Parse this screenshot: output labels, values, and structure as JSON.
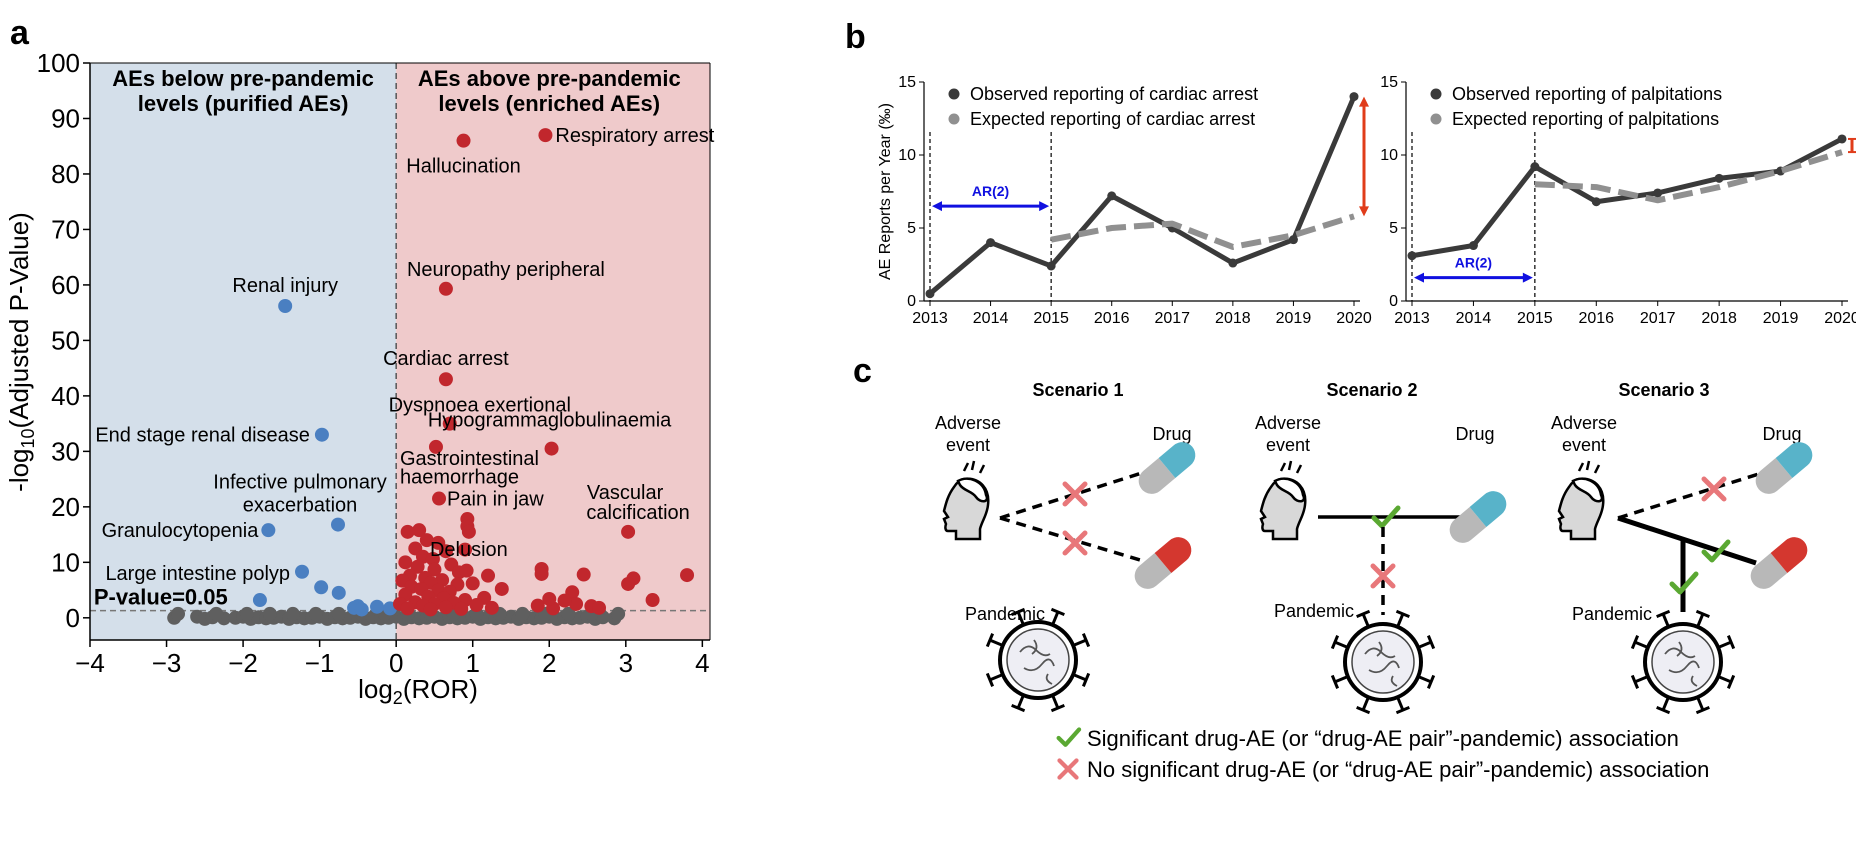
{
  "panels": {
    "a": "a",
    "b": "b",
    "c": "c"
  },
  "chart_data": [
    {
      "type": "scatter",
      "panel": "a",
      "xlabel_base": "log",
      "xlabel_sub": "2",
      "xlabel_rest": "(ROR)",
      "ylabel_pre": "-log",
      "ylabel_sub": "10",
      "ylabel_rest": "(Adjusted P-Value)",
      "xlim": [
        -4,
        4.1
      ],
      "ylim": [
        -4,
        100
      ],
      "xticks": [
        -4,
        -3,
        -2,
        -1,
        0,
        1,
        2,
        3,
        4
      ],
      "xtick_labels": [
        "−4",
        "−3",
        "−2",
        "−1",
        "0",
        "1",
        "2",
        "3",
        "4"
      ],
      "yticks": [
        0,
        10,
        20,
        30,
        40,
        50,
        60,
        70,
        80,
        90,
        100
      ],
      "ytick_labels": [
        "0",
        "10",
        "20",
        "30",
        "40",
        "50",
        "60",
        "70",
        "80",
        "90",
        "100"
      ],
      "region_left_title": [
        "AEs below pre-pandemic",
        "levels (purified AEs)"
      ],
      "region_right_title": [
        "AEs above pre-pandemic",
        "levels (enriched AEs)"
      ],
      "threshold": {
        "y": 1.3,
        "label": "P-value=0.05"
      },
      "colors": {
        "purified": "#4a7fc1",
        "enriched": "#c1272d",
        "insignificant": "#5f5f5f",
        "left_bg": "#d4dfea",
        "right_bg": "#efcacb"
      },
      "labeled_points": [
        {
          "x": 1.95,
          "y": 87,
          "group": "enriched",
          "label": "Respiratory arrest"
        },
        {
          "x": 0.88,
          "y": 86,
          "group": "enriched",
          "label": "Hallucination"
        },
        {
          "x": 0.65,
          "y": 59.3,
          "group": "enriched",
          "label": "Neuropathy peripheral"
        },
        {
          "x": 0.65,
          "y": 43,
          "group": "enriched",
          "label": "Cardiac arrest"
        },
        {
          "x": 0.7,
          "y": 35,
          "group": "enriched",
          "label": "Dyspnoea exertional"
        },
        {
          "x": 2.03,
          "y": 30.5,
          "group": "enriched",
          "label": "Hypogrammaglobulinaemia"
        },
        {
          "x": 0.56,
          "y": 21.5,
          "group": "enriched",
          "label": "Pain in jaw"
        },
        {
          "x": 0.95,
          "y": 15.5,
          "group": "enriched",
          "label": "Delusion"
        },
        {
          "x": 3.03,
          "y": 15.5,
          "group": "enriched",
          "label": "Vascular calcification"
        },
        {
          "x": -1.45,
          "y": 56.2,
          "group": "purified",
          "label": "Renal injury"
        },
        {
          "x": -0.97,
          "y": 33,
          "group": "purified",
          "label": "End stage renal disease"
        },
        {
          "x": -0.76,
          "y": 16.8,
          "group": "purified",
          "label": "Infective pulmonary exacerbation"
        },
        {
          "x": -1.67,
          "y": 15.8,
          "group": "purified",
          "label": "Granulocytopenia"
        },
        {
          "x": -1.23,
          "y": 8.3,
          "group": "purified",
          "label": "Large intestine polyp"
        }
      ],
      "extra_point_labels": [
        {
          "text": "Gastrointestinal",
          "x": 0.05,
          "y": 27.5
        },
        {
          "text": "haemorrhage",
          "x": 0.05,
          "y": 24.2
        }
      ],
      "enriched_points": [
        {
          "x": 0.52,
          "y": 30.8
        },
        {
          "x": 0.93,
          "y": 17.8
        },
        {
          "x": 0.93,
          "y": 16.5
        },
        {
          "x": 0.3,
          "y": 15.8
        },
        {
          "x": 0.15,
          "y": 15.5
        },
        {
          "x": 0.4,
          "y": 14
        },
        {
          "x": 0.55,
          "y": 13.5
        },
        {
          "x": 0.25,
          "y": 12.5
        },
        {
          "x": 0.65,
          "y": 12
        },
        {
          "x": 0.9,
          "y": 12.3
        },
        {
          "x": 0.35,
          "y": 11
        },
        {
          "x": 0.48,
          "y": 10.6
        },
        {
          "x": 0.12,
          "y": 10
        },
        {
          "x": 0.72,
          "y": 9.6
        },
        {
          "x": 0.28,
          "y": 9.2
        },
        {
          "x": 0.5,
          "y": 8.7
        },
        {
          "x": 0.82,
          "y": 8.2
        },
        {
          "x": 0.92,
          "y": 8.5
        },
        {
          "x": 1.2,
          "y": 7.6
        },
        {
          "x": 0.18,
          "y": 7.6
        },
        {
          "x": 0.38,
          "y": 7.2
        },
        {
          "x": 0.6,
          "y": 6.8
        },
        {
          "x": 0.08,
          "y": 6.7
        },
        {
          "x": 0.45,
          "y": 6.3
        },
        {
          "x": 0.8,
          "y": 6
        },
        {
          "x": 1.0,
          "y": 6.2
        },
        {
          "x": 0.2,
          "y": 5.6
        },
        {
          "x": 0.33,
          "y": 5.2
        },
        {
          "x": 0.55,
          "y": 4.9
        },
        {
          "x": 0.7,
          "y": 4.7
        },
        {
          "x": 1.38,
          "y": 5.2
        },
        {
          "x": 0.12,
          "y": 4.2
        },
        {
          "x": 0.42,
          "y": 3.8
        },
        {
          "x": 0.62,
          "y": 3.5
        },
        {
          "x": 0.9,
          "y": 3.2
        },
        {
          "x": 1.15,
          "y": 3.6
        },
        {
          "x": 0.25,
          "y": 2.8
        },
        {
          "x": 0.5,
          "y": 2.5
        },
        {
          "x": 0.75,
          "y": 2.7
        },
        {
          "x": 1.05,
          "y": 2.3
        },
        {
          "x": 0.05,
          "y": 2.5
        },
        {
          "x": 0.35,
          "y": 2.2
        },
        {
          "x": 0.65,
          "y": 1.9
        },
        {
          "x": 0.15,
          "y": 1.7
        },
        {
          "x": 0.45,
          "y": 1.5
        },
        {
          "x": 0.85,
          "y": 1.6
        },
        {
          "x": 1.25,
          "y": 1.8
        },
        {
          "x": 1.9,
          "y": 8.8
        },
        {
          "x": 1.9,
          "y": 7.9
        },
        {
          "x": 2.45,
          "y": 7.8
        },
        {
          "x": 2.3,
          "y": 4.6
        },
        {
          "x": 2.35,
          "y": 2.5
        },
        {
          "x": 2.55,
          "y": 2.1
        },
        {
          "x": 1.85,
          "y": 2.2
        },
        {
          "x": 2.05,
          "y": 1.7
        },
        {
          "x": 2.2,
          "y": 3.1
        },
        {
          "x": 3.1,
          "y": 7.1
        },
        {
          "x": 3.03,
          "y": 6.1
        },
        {
          "x": 3.35,
          "y": 3.2
        },
        {
          "x": 2.65,
          "y": 1.8
        },
        {
          "x": 3.8,
          "y": 7.7
        },
        {
          "x": 2.0,
          "y": 3.4
        }
      ],
      "purified_points": [
        {
          "x": -1.78,
          "y": 3.2
        },
        {
          "x": -0.98,
          "y": 5.5
        },
        {
          "x": -0.75,
          "y": 4.5
        },
        {
          "x": -0.5,
          "y": 2.1
        },
        {
          "x": -0.55,
          "y": 1.8
        },
        {
          "x": -0.45,
          "y": 1.5
        },
        {
          "x": -0.25,
          "y": 2.0
        },
        {
          "x": -0.08,
          "y": 1.7
        }
      ],
      "insignificant_points_x": [
        -2.9,
        -2.6,
        -2.5,
        -2.4,
        -2.25,
        -2.1,
        -2.0,
        -1.9,
        -1.8,
        -1.7,
        -1.6,
        -1.5,
        -1.4,
        -1.3,
        -1.2,
        -1.1,
        -1.0,
        -0.9,
        -0.8,
        -0.7,
        -0.6,
        -0.5,
        -0.4,
        -0.3,
        -0.2,
        -0.1,
        0.0,
        0.1,
        0.2,
        0.3,
        0.4,
        0.5,
        0.6,
        0.7,
        0.8,
        0.9,
        1.0,
        1.1,
        1.2,
        1.3,
        1.4,
        1.5,
        1.6,
        1.7,
        1.8,
        1.9,
        2.0,
        2.1,
        2.2,
        2.3,
        2.4,
        2.5,
        2.6,
        2.7,
        2.85
      ]
    },
    {
      "type": "line",
      "panel": "b-left",
      "ylabel": "AE Reports per Year (‰)",
      "x": [
        2013,
        2014,
        2015,
        2016,
        2017,
        2018,
        2019,
        2020
      ],
      "xtick_labels": [
        "2013",
        "2014",
        "2015",
        "2016",
        "2017",
        "2018",
        "2019",
        "2020"
      ],
      "ylim": [
        0,
        15
      ],
      "yticks": [
        0,
        5,
        10,
        15
      ],
      "ytick_labels": [
        "0",
        "5",
        "10",
        "15"
      ],
      "series": [
        {
          "name": "Observed reporting of cardiac arrest",
          "color": "#3a3a3a",
          "x": [
            2013,
            2014,
            2015,
            2016,
            2017,
            2018,
            2019,
            2020
          ],
          "values": [
            0.5,
            4.0,
            2.4,
            7.2,
            5.0,
            2.6,
            4.2,
            14.0
          ]
        },
        {
          "name": "Expected reporting of cardiac arrest",
          "color": "#909090",
          "dashed": true,
          "x": [
            2015,
            2016,
            2017,
            2018,
            2019,
            2020
          ],
          "values": [
            4.2,
            5.0,
            5.3,
            3.7,
            4.5,
            5.8
          ]
        }
      ],
      "ar_label": "AR(2)",
      "ar_range": [
        2013,
        2015
      ],
      "ar_y": 6.5,
      "diff_arrow": {
        "x": 2020,
        "from": 5.8,
        "to": 14.0,
        "color": "#e03c1a"
      }
    },
    {
      "type": "line",
      "panel": "b-right",
      "x": [
        2013,
        2014,
        2015,
        2016,
        2017,
        2018,
        2019,
        2020
      ],
      "xtick_labels": [
        "2013",
        "2014",
        "2015",
        "2016",
        "2017",
        "2018",
        "2019",
        "2020"
      ],
      "ylim": [
        0,
        15
      ],
      "yticks": [
        0,
        5,
        10,
        15
      ],
      "ytick_labels": [
        "0",
        "5",
        "10",
        "15"
      ],
      "series": [
        {
          "name": "Observed reporting of palpitations",
          "color": "#3a3a3a",
          "x": [
            2013,
            2014,
            2015,
            2016,
            2017,
            2018,
            2019,
            2020
          ],
          "values": [
            3.1,
            3.8,
            9.2,
            6.8,
            7.4,
            8.4,
            8.9,
            11.1
          ]
        },
        {
          "name": "Expected reporting of palpitations",
          "color": "#909090",
          "dashed": true,
          "x": [
            2015,
            2016,
            2017,
            2018,
            2019,
            2020
          ],
          "values": [
            8.0,
            7.8,
            6.9,
            7.8,
            8.9,
            10.2
          ]
        }
      ],
      "ar_label": "AR(2)",
      "ar_range": [
        2013,
        2015
      ],
      "ar_y": 1.6,
      "diff_arrow": {
        "x": 2020,
        "from": 10.2,
        "to": 11.1,
        "color": "#e03c1a"
      }
    }
  ],
  "diagram": {
    "scenarios": [
      {
        "title": "Scenario 1",
        "adverse_event": [
          "Adverse",
          "event"
        ],
        "drug": "Drug",
        "pandemic": "Pandemic"
      },
      {
        "title": "Scenario 2",
        "adverse_event": [
          "Adverse",
          "event"
        ],
        "drug": "Drug",
        "pandemic": "Pandemic"
      },
      {
        "title": "Scenario 3",
        "adverse_event": [
          "Adverse",
          "event"
        ],
        "drug": "Drug",
        "pandemic": "Pandemic"
      }
    ],
    "legend": [
      {
        "symbol": "check-icon",
        "text": "Significant drug-AE (or “drug-AE pair”-pandemic) association"
      },
      {
        "symbol": "cross-icon",
        "text": "No significant drug-AE (or “drug-AE pair”-pandemic) association"
      }
    ],
    "colors": {
      "check": "#5aa832",
      "cross": "#e8777a",
      "pill_blue": "#58b3c9",
      "pill_red": "#d4372f",
      "pill_grey": "#b8b8b8"
    }
  }
}
